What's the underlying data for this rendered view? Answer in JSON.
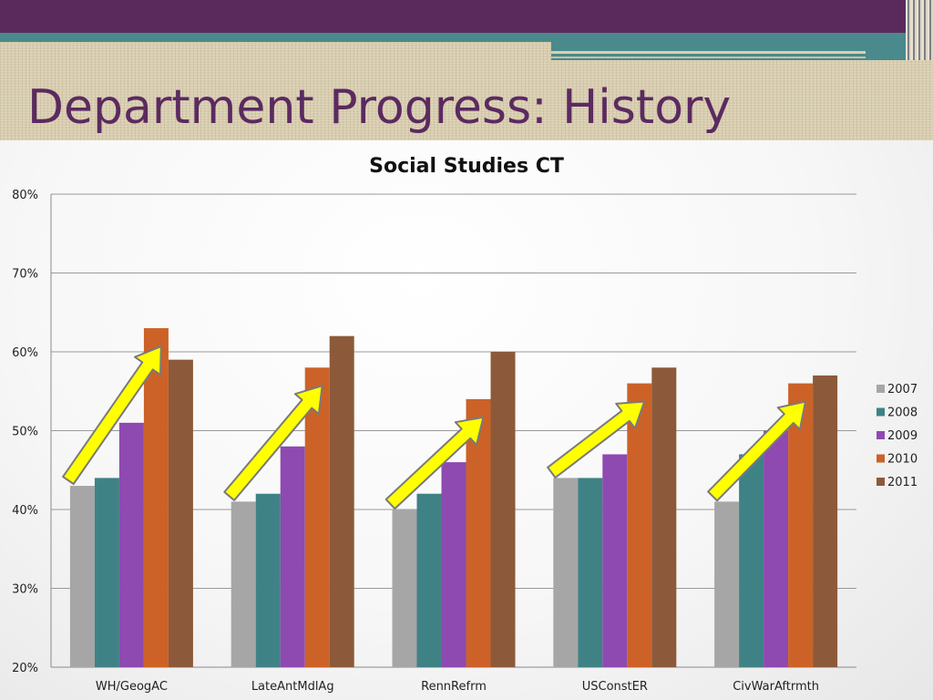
{
  "slide": {
    "title": "Department Progress: History"
  },
  "colors": {
    "header": "#5a2a5c",
    "accent_teal": "#4a8a8c",
    "title_text": "#5b2a60",
    "arrow_fill": "#ffff00",
    "arrow_stroke": "#7a7a7a"
  },
  "chart_data": {
    "type": "bar",
    "title": "Social Studies CT",
    "xlabel": "",
    "ylabel": "",
    "categories": [
      "WH/GeogAC",
      "LateAntMdlAg",
      "RennRefrm",
      "USConstER",
      "CivWarAftrmth"
    ],
    "series": [
      {
        "name": "2007",
        "color": "#a6a6a6",
        "values": [
          43,
          41,
          40,
          44,
          41
        ]
      },
      {
        "name": "2008",
        "color": "#3f8285",
        "values": [
          44,
          42,
          42,
          44,
          47
        ]
      },
      {
        "name": "2009",
        "color": "#8e4ab0",
        "values": [
          51,
          48,
          46,
          47,
          50
        ]
      },
      {
        "name": "2010",
        "color": "#cc6228",
        "values": [
          63,
          58,
          54,
          56,
          56
        ]
      },
      {
        "name": "2011",
        "color": "#8c5a3a",
        "values": [
          59,
          62,
          60,
          58,
          57
        ]
      }
    ],
    "ylim": [
      20,
      80
    ],
    "yticks": [
      "20%",
      "30%",
      "40%",
      "50%",
      "60%",
      "70%",
      "80%"
    ],
    "grid": true,
    "legend_position": "right",
    "annotations": "yellow upward arrows over each category group"
  }
}
